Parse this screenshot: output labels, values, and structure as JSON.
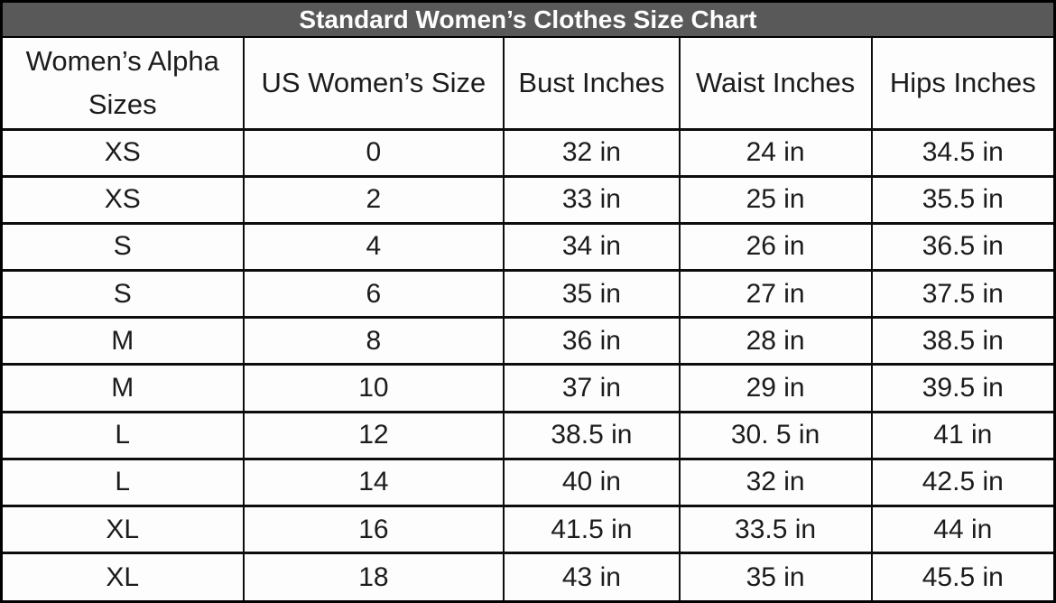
{
  "chart_data": {
    "type": "table",
    "title": "Standard Women’s Clothes Size Chart",
    "columns": [
      "Women’s Alpha Sizes",
      "US Women’s Size",
      "Bust Inches",
      "Waist Inches",
      "Hips Inches"
    ],
    "rows": [
      [
        "XS",
        "0",
        "32 in",
        "24 in",
        "34.5 in"
      ],
      [
        "XS",
        "2",
        "33 in",
        "25 in",
        "35.5 in"
      ],
      [
        "S",
        "4",
        "34 in",
        "26 in",
        "36.5 in"
      ],
      [
        "S",
        "6",
        "35 in",
        "27 in",
        "37.5 in"
      ],
      [
        "M",
        "8",
        "36 in",
        "28 in",
        "38.5 in"
      ],
      [
        "M",
        "10",
        "37 in",
        "29 in",
        "39.5 in"
      ],
      [
        "L",
        "12",
        "38.5 in",
        "30. 5 in",
        "41 in"
      ],
      [
        "L",
        "14",
        "40 in",
        "32 in",
        "42.5 in"
      ],
      [
        "XL",
        "16",
        "41.5 in",
        "33.5 in",
        "44 in"
      ],
      [
        "XL",
        "18",
        "43 in",
        "35 in",
        "45.5 in"
      ]
    ],
    "colors": {
      "title_background": "#595959",
      "title_text": "#ffffff",
      "cell_background": "#fdfdfd",
      "cell_text": "#1c1c1c",
      "border": "#000000"
    },
    "layout": {
      "legend": "none",
      "grid": "full-borders"
    }
  }
}
